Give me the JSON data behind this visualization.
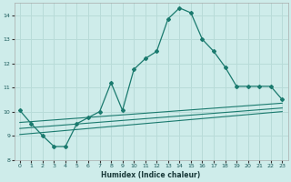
{
  "xlabel": "Humidex (Indice chaleur)",
  "ylabel": "",
  "bg_color": "#ceecea",
  "grid_color": "#b8dbd8",
  "line_color": "#1a7a6e",
  "xlim": [
    -0.5,
    23.5
  ],
  "ylim": [
    8,
    14.5
  ],
  "yticks": [
    8,
    9,
    10,
    11,
    12,
    13,
    14
  ],
  "xticks": [
    0,
    1,
    2,
    3,
    4,
    5,
    6,
    7,
    8,
    9,
    10,
    11,
    12,
    13,
    14,
    15,
    16,
    17,
    18,
    19,
    20,
    21,
    22,
    23
  ],
  "main_x": [
    0,
    1,
    2,
    3,
    4,
    5,
    6,
    7,
    8,
    9,
    10,
    11,
    12,
    13,
    14,
    15,
    16,
    17,
    18,
    19,
    20,
    21,
    22,
    23
  ],
  "main_y": [
    10.05,
    9.5,
    9.0,
    8.55,
    8.55,
    9.5,
    9.75,
    10.0,
    11.2,
    10.05,
    11.75,
    12.2,
    12.5,
    13.85,
    14.3,
    14.1,
    13.0,
    12.5,
    11.85,
    11.05,
    11.05,
    11.05,
    11.05,
    10.5
  ],
  "line1_x": [
    0,
    23
  ],
  "line1_y": [
    9.05,
    10.0
  ],
  "line2_x": [
    0,
    23
  ],
  "line2_y": [
    9.3,
    10.15
  ],
  "line3_x": [
    0,
    23
  ],
  "line3_y": [
    9.55,
    10.35
  ]
}
